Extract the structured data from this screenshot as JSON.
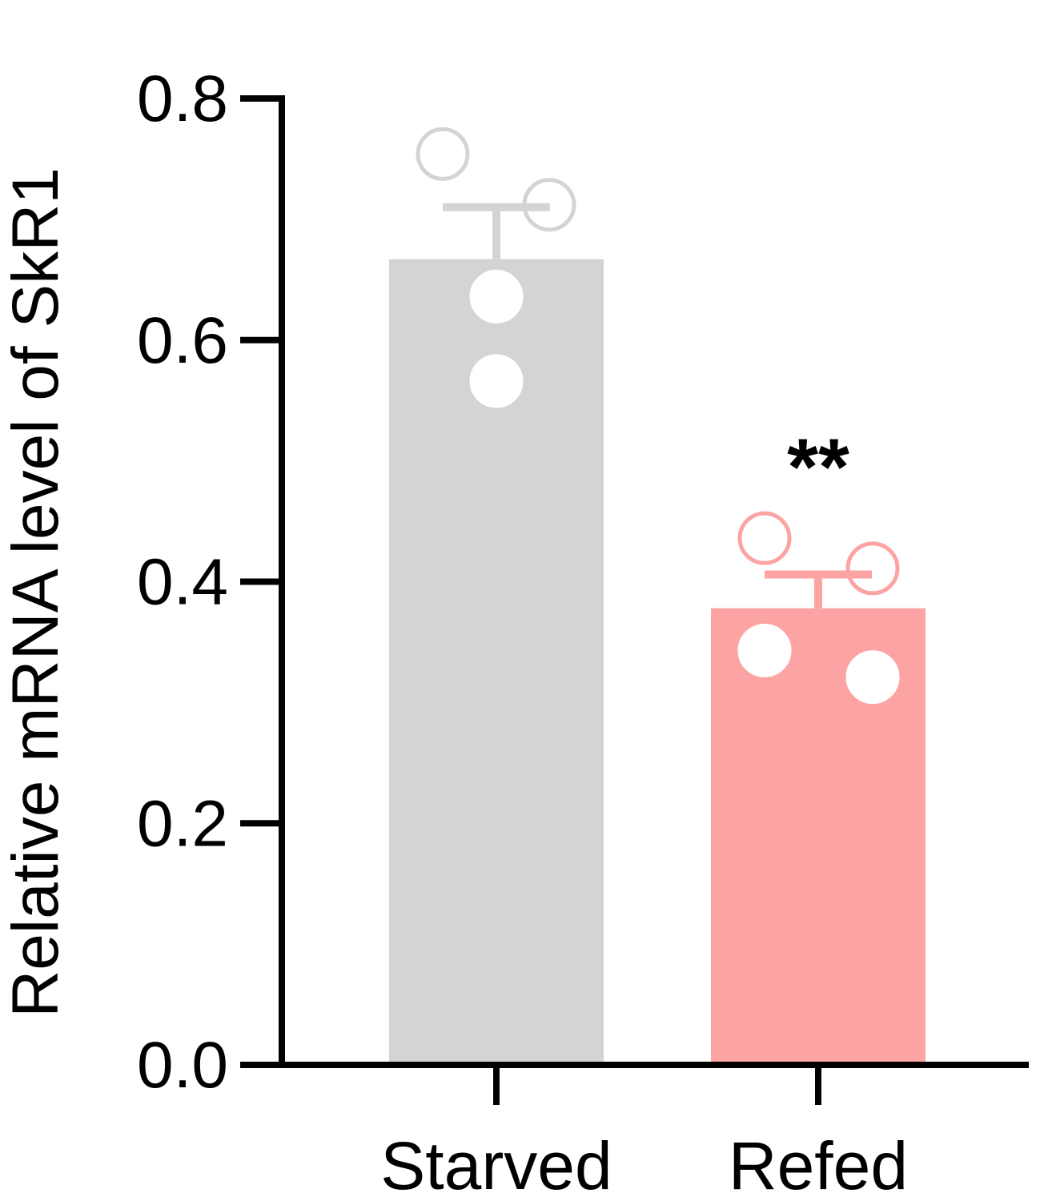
{
  "chart_data": {
    "type": "bar",
    "y_label": "Relative mRNA level of SkR1",
    "categories": [
      "Starved",
      "Refed"
    ],
    "values": [
      0.667,
      0.378
    ],
    "errors": [
      0.043,
      0.028
    ],
    "points": [
      [
        0.754,
        0.712,
        0.636,
        0.566
      ],
      [
        0.436,
        0.411,
        0.343,
        0.321
      ]
    ],
    "colors": [
      "#d4d4d4",
      "#fca3a3"
    ],
    "annotation": "**",
    "ylim": [
      0,
      0.8
    ],
    "yticks": [
      {
        "value": 0,
        "label": "0.0"
      },
      {
        "value": 0.2,
        "label": "0.2"
      },
      {
        "value": 0.4,
        "label": "0.4"
      },
      {
        "value": 0.6,
        "label": "0.6"
      },
      {
        "value": 0.8,
        "label": "0.8"
      }
    ]
  }
}
